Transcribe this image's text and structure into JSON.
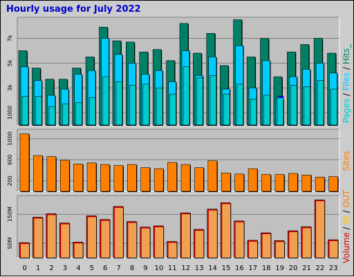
{
  "title": "Hourly usage for July 2022",
  "colors": {
    "pages": "#00cccc",
    "files": "#00ccff",
    "hits": "#008066",
    "visits": "#0000cc",
    "sites": "#ff8000",
    "kbytes": "#cc0000",
    "in_out": "#ffcc00",
    "kbytes_fill": "#f0a050"
  },
  "side_labels": {
    "top": [
      {
        "text": "Pages",
        "color": "#00cccc"
      },
      {
        "text": " / ",
        "color": "#000000"
      },
      {
        "text": "Files",
        "color": "#00ccff"
      },
      {
        "text": " / ",
        "color": "#000000"
      },
      {
        "text": "Hits_",
        "color": "#008066"
      }
    ],
    "mid": [
      {
        "text": "Sites",
        "color": "#ff8000"
      }
    ],
    "bot": [
      {
        "text": "Volume",
        "color": "#cc0000"
      },
      {
        "text": " / ",
        "color": "#000000"
      },
      {
        "text": "IN",
        "color": "#ffcc00"
      },
      {
        "text": " / ",
        "color": "#000000"
      },
      {
        "text": "OUT",
        "color": "#ff8000"
      }
    ]
  },
  "chart_data": [
    {
      "type": "bar",
      "name": "hits-files-pages",
      "categories": [
        "0",
        "1",
        "2",
        "3",
        "4",
        "5",
        "6",
        "7",
        "8",
        "9",
        "10",
        "11",
        "12",
        "13",
        "14",
        "15",
        "16",
        "17",
        "18",
        "19",
        "20",
        "21",
        "22",
        "23"
      ],
      "ylim": [
        0,
        8700
      ],
      "yticks": [
        "1000",
        "3k",
        "5k",
        "7k"
      ],
      "ytick_values": [
        1000,
        3000,
        5000,
        7000
      ],
      "series": [
        {
          "key": "hits",
          "values": [
            6000,
            4600,
            3700,
            3700,
            4600,
            5500,
            7900,
            6800,
            6700,
            5900,
            6100,
            5200,
            8200,
            5800,
            7400,
            4800,
            8500,
            5500,
            7000,
            3900,
            5900,
            6500,
            7000,
            5800
          ]
        },
        {
          "key": "files",
          "values": [
            4700,
            3600,
            2400,
            2900,
            4100,
            4400,
            7000,
            5700,
            5000,
            4100,
            4400,
            3500,
            6000,
            4000,
            5500,
            2900,
            6400,
            3000,
            5200,
            2100,
            3900,
            4500,
            5000,
            4200
          ]
        },
        {
          "key": "pages",
          "values": [
            2300,
            2300,
            1500,
            1700,
            1800,
            2200,
            3900,
            3500,
            3200,
            3300,
            3000,
            2500,
            4700,
            3800,
            4000,
            2500,
            3300,
            2100,
            2400,
            2300,
            3200,
            3100,
            3600,
            2900
          ]
        },
        {
          "key": "visits",
          "values": [
            0,
            0,
            0,
            0,
            0,
            0,
            0,
            0,
            0,
            0,
            0,
            0,
            0,
            0,
            0,
            0,
            0,
            0,
            0,
            2350,
            0,
            0,
            0,
            0
          ]
        }
      ]
    },
    {
      "type": "bar",
      "name": "sites",
      "categories": [
        "0",
        "1",
        "2",
        "3",
        "4",
        "5",
        "6",
        "7",
        "8",
        "9",
        "10",
        "11",
        "12",
        "13",
        "14",
        "15",
        "16",
        "17",
        "18",
        "19",
        "20",
        "21",
        "22",
        "23"
      ],
      "ylim": [
        0,
        1180
      ],
      "yticks": [
        "200",
        "600",
        "1000"
      ],
      "ytick_values": [
        200,
        600,
        1000
      ],
      "series": [
        {
          "key": "sites",
          "values": [
            1090,
            680,
            660,
            590,
            520,
            540,
            510,
            490,
            510,
            450,
            430,
            550,
            510,
            450,
            580,
            350,
            330,
            430,
            320,
            320,
            340,
            310,
            270,
            280
          ]
        }
      ]
    },
    {
      "type": "bar",
      "name": "kbytes",
      "categories": [
        "0",
        "1",
        "2",
        "3",
        "4",
        "5",
        "6",
        "7",
        "8",
        "9",
        "10",
        "11",
        "12",
        "13",
        "14",
        "15",
        "16",
        "17",
        "18",
        "19",
        "20",
        "21",
        "22",
        "23"
      ],
      "ylim": [
        0,
        215
      ],
      "yticks": [
        "50M",
        "150M"
      ],
      "ytick_values": [
        50,
        150
      ],
      "series": [
        {
          "key": "kbytes",
          "values": [
            52,
            140,
            152,
            120,
            54,
            145,
            132,
            177,
            125,
            106,
            110,
            56,
            155,
            98,
            168,
            190,
            127,
            60,
            86,
            59,
            93,
            107,
            200,
            62
          ]
        }
      ]
    }
  ],
  "xlabels": [
    "0",
    "1",
    "2",
    "3",
    "4",
    "5",
    "6",
    "7",
    "8",
    "9",
    "10",
    "11",
    "12",
    "13",
    "14",
    "15",
    "16",
    "17",
    "18",
    "19",
    "20",
    "21",
    "22",
    "23"
  ]
}
